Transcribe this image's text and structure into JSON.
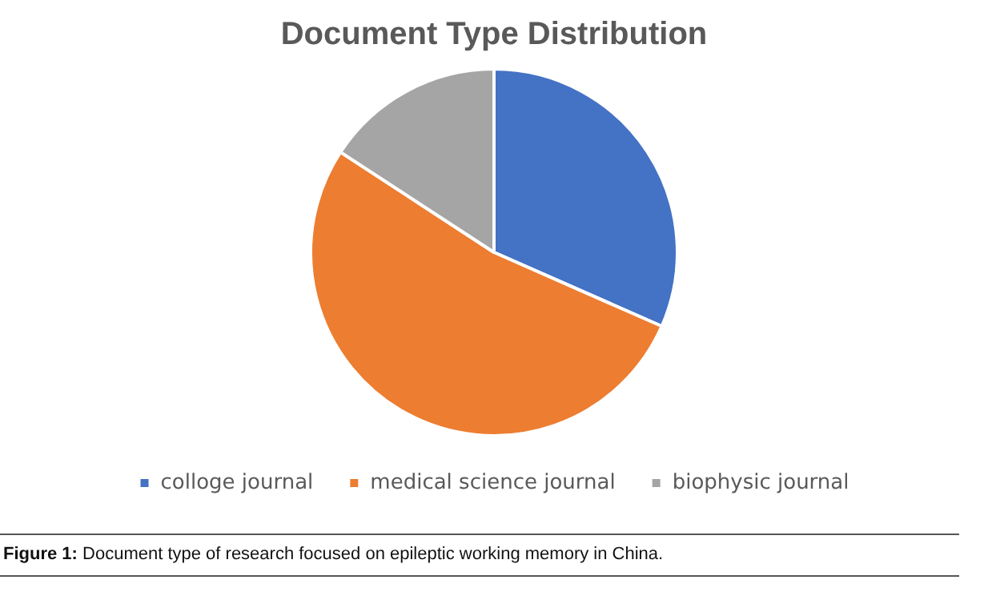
{
  "chart_data": {
    "type": "pie",
    "title": "Document Type Distribution",
    "categories": [
      "colloge journal",
      "medical science journal",
      "biophysic journal"
    ],
    "values": [
      31.6,
      52.6,
      15.8
    ],
    "colors": [
      "#4472c4",
      "#ed7d31",
      "#a5a5a5"
    ],
    "legend": "bottom",
    "annotations": [
      "Figure 1: Document type of research focused on epileptic working memory in China."
    ]
  }
}
